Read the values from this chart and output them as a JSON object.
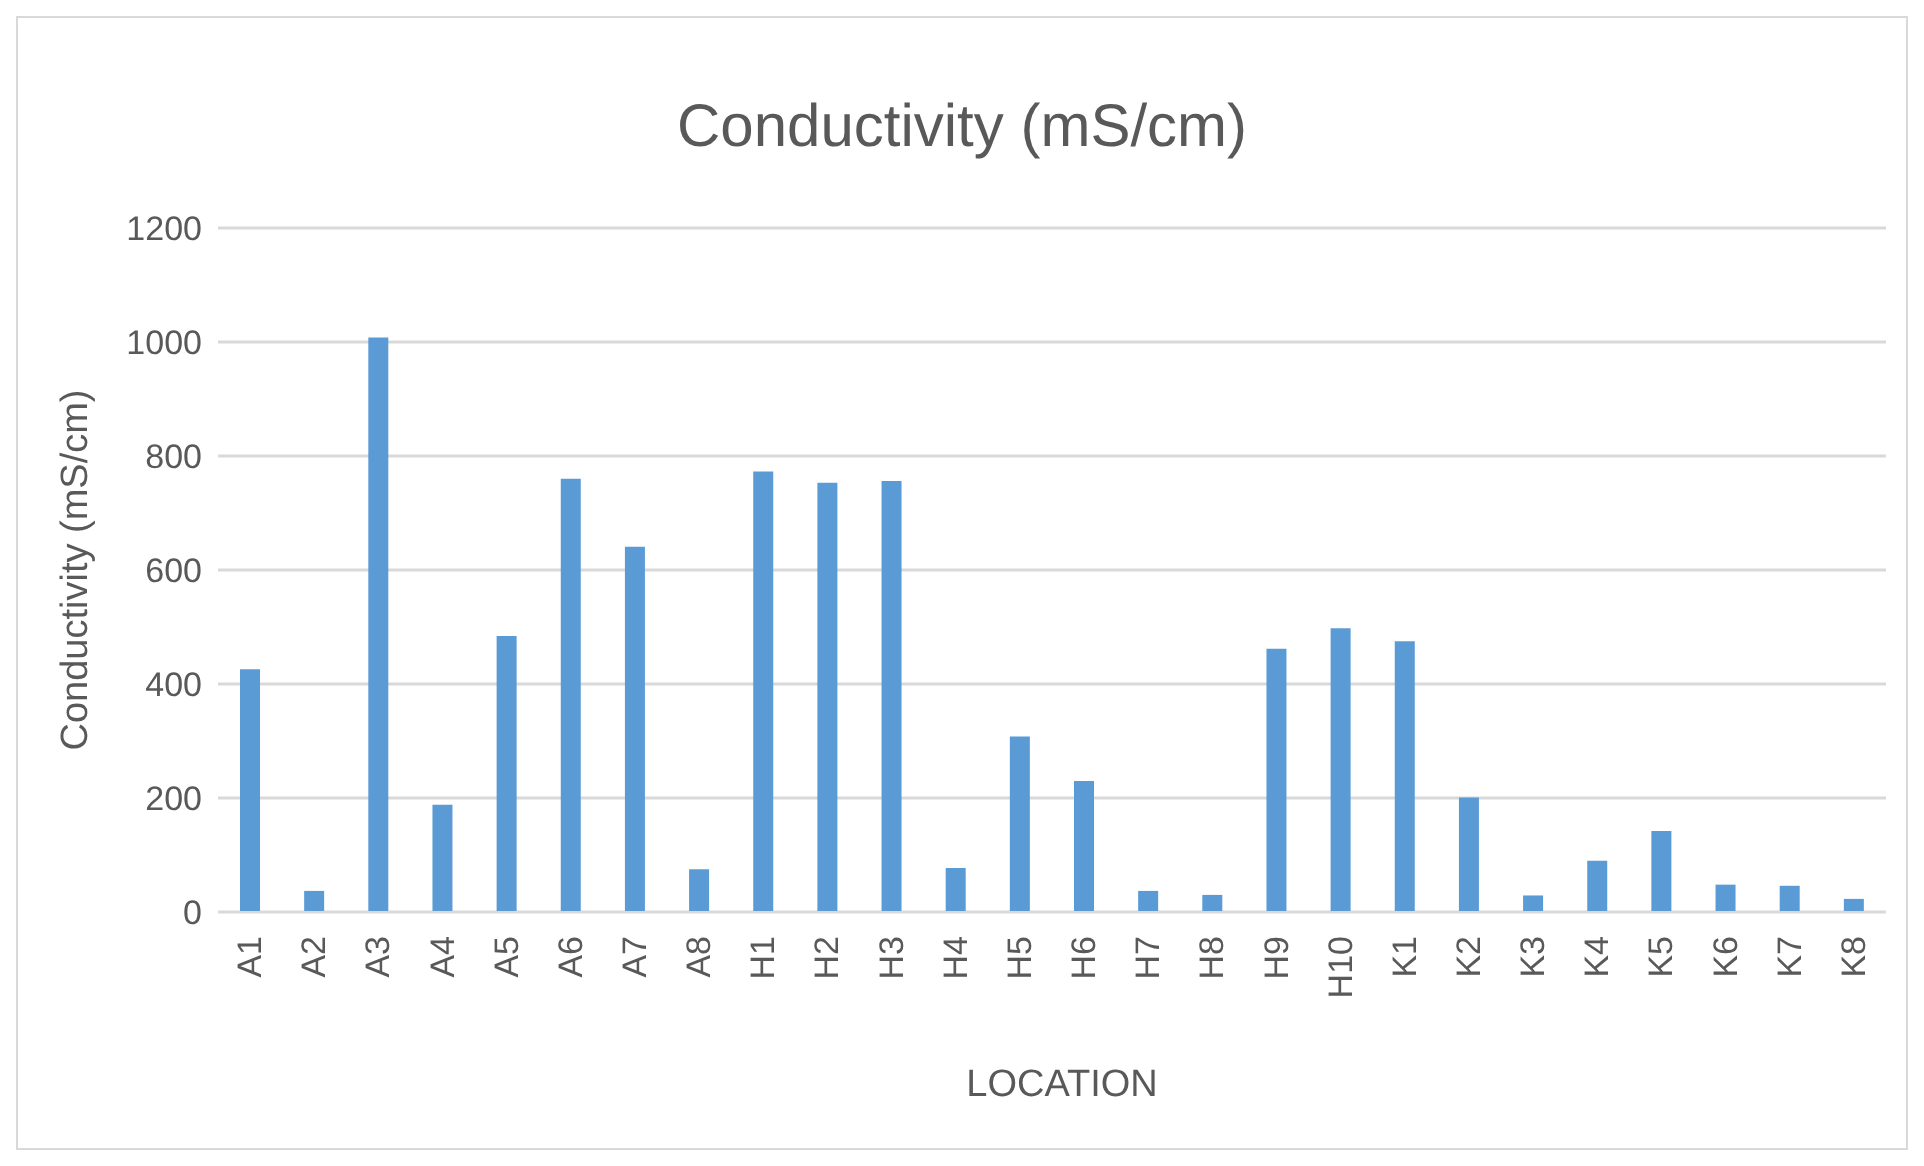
{
  "chart_data": {
    "type": "bar",
    "title": "Conductivity (mS/cm)",
    "xlabel": "LOCATION",
    "ylabel": "Conductivity (mS/cm)",
    "categories": [
      "A1",
      "A2",
      "A3",
      "A4",
      "A5",
      "A6",
      "A7",
      "A8",
      "H1",
      "H2",
      "H3",
      "H4",
      "H5",
      "H6",
      "H7",
      "H8",
      "H9",
      "H10",
      "K1",
      "K2",
      "K3",
      "K4",
      "K5",
      "K6",
      "K7",
      "K8"
    ],
    "values": [
      426,
      37,
      1008,
      188,
      484,
      760,
      641,
      75,
      773,
      753,
      756,
      77,
      308,
      230,
      37,
      30,
      462,
      498,
      475,
      201,
      29,
      90,
      142,
      48,
      46,
      23
    ],
    "color": "#5b9bd5",
    "ylim": [
      0,
      1200
    ],
    "yticks": [
      0,
      200,
      400,
      600,
      800,
      1000,
      1200
    ],
    "grid": "y"
  }
}
